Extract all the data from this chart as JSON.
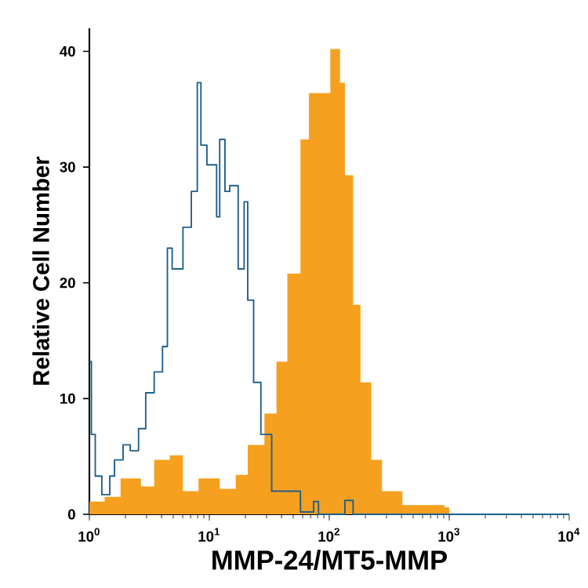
{
  "chart_data": {
    "type": "step",
    "xlabel": "MMP-24/MT5-MMP",
    "ylabel": "Relative Cell Number",
    "log": "x",
    "xlim": [
      1,
      10000
    ],
    "ylim": [
      0,
      42
    ],
    "xticks": [
      {
        "value": 1,
        "label": "10$^{0}$"
      },
      {
        "value": 10,
        "label": "10$^{1}$"
      },
      {
        "value": 100,
        "label": "10$^{2}$"
      },
      {
        "value": 1000,
        "label": "10$^{3}$"
      },
      {
        "value": 10000,
        "label": "10$^{4}$"
      }
    ],
    "yticks": [
      0,
      10,
      20,
      30,
      40
    ],
    "series": [
      {
        "type": "area",
        "color": "#f6a01f",
        "x": [
          1.0,
          1.34,
          1.82,
          2.69,
          3.47,
          4.68,
          6.03,
          8.13,
          12.2,
          16.6,
          20.9,
          28.8,
          36.3,
          44.7,
          57.5,
          67.6,
          74.1,
          95.5,
          102,
          123,
          135,
          158,
          182,
          224,
          275,
          407,
          912,
          1000,
          10000
        ],
        "values": [
          1.1,
          1.5,
          3.1,
          2.4,
          4.7,
          5.1,
          2.0,
          3.1,
          2.2,
          3.4,
          6.0,
          8.7,
          13.2,
          20.8,
          32.4,
          36.4,
          36.4,
          36.4,
          40.2,
          37.3,
          29.3,
          18.1,
          11.4,
          4.7,
          2.0,
          0.8,
          0.6,
          0,
          0
        ]
      },
      {
        "color": "#1f5f8b",
        "x": [
          1.0,
          1.04,
          1.12,
          1.27,
          1.48,
          1.62,
          1.91,
          2.19,
          2.57,
          2.95,
          3.47,
          4.07,
          4.47,
          4.9,
          6.03,
          7.08,
          7.94,
          8.51,
          9.55,
          10.5,
          11.5,
          12.2,
          13.5,
          14.8,
          17.4,
          19.5,
          20.9,
          23.4,
          26.9,
          30.9,
          33.1,
          44.7,
          57.5,
          74.1,
          81.3,
          135,
          158,
          10000
        ],
        "values": [
          13.2,
          6.9,
          3.3,
          1.7,
          3.3,
          4.7,
          6.0,
          5.5,
          7.4,
          10.5,
          12.3,
          14.5,
          23.0,
          21.2,
          24.8,
          27.9,
          37.3,
          31.9,
          30.2,
          30.2,
          25.7,
          32.4,
          27.9,
          28.4,
          21.2,
          27.0,
          18.5,
          11.4,
          6.9,
          6.9,
          2.0,
          2.0,
          0.2,
          1.1,
          0,
          1.2,
          0,
          0
        ]
      }
    ]
  }
}
